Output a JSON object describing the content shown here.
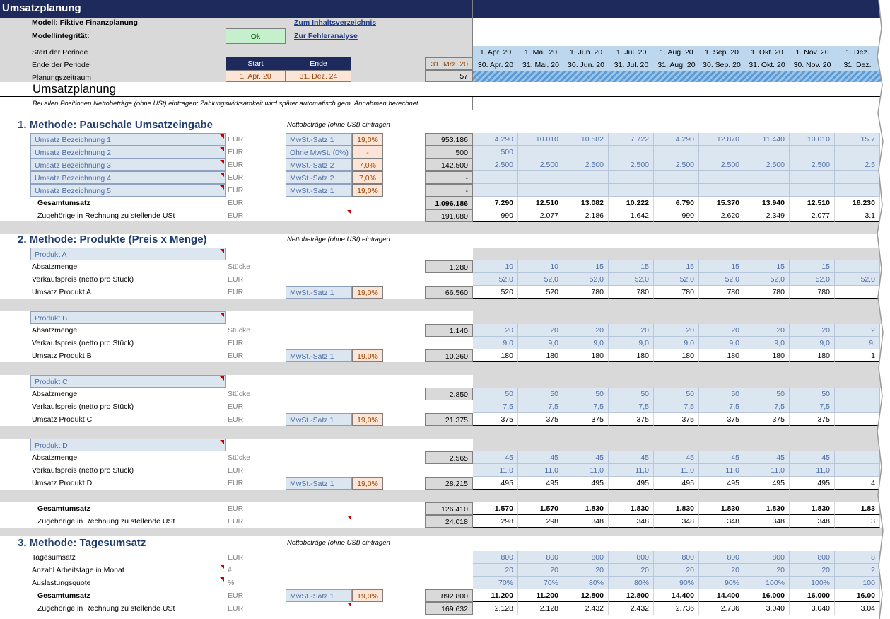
{
  "sheet_title": "Umsatzplanung",
  "header": {
    "model_label": "Modell: Fiktive Finanzplanung",
    "integrity_label": "Modellintegrität:",
    "integrity_status": "Ok",
    "link_toc": "Zum Inhaltsverzeichnis",
    "link_errors": "Zur Fehleranalyse",
    "period_start_label": "Start der Periode",
    "period_end_label": "Ende der Periode",
    "planning_range_label": "Planungszeitraum",
    "start_header": "Start",
    "end_header": "Ende",
    "start_value": "1. Apr. 20",
    "end_value": "31. Dez. 24",
    "prev_date": "31. Mrz. 20",
    "period_count": "57"
  },
  "periods": {
    "starts": [
      "1. Apr. 20",
      "1. Mai. 20",
      "1. Jun. 20",
      "1. Jul. 20",
      "1. Aug. 20",
      "1. Sep. 20",
      "1. Okt. 20",
      "1. Nov. 20",
      "1. Dez."
    ],
    "ends": [
      "30. Apr. 20",
      "31. Mai. 20",
      "30. Jun. 20",
      "31. Jul. 20",
      "31. Aug. 20",
      "30. Sep. 20",
      "31. Okt. 20",
      "30. Nov. 20",
      "31. Dez."
    ]
  },
  "section_title": "Umsatzplanung",
  "note": "Bei allen Positionen Nettobeträge (ohne USt) eintragen; Zahlungswirksamkeit wird später automatisch gem. Annahmen berechnet",
  "m1": {
    "title": "1.  Methode: Pauschale Umsatzeingabe",
    "hint": "Nettobeträge (ohne USt) eintragen",
    "rows": [
      {
        "name": "Umsatz Bezeichnung 1",
        "unit": "EUR",
        "vat": "MwSt.-Satz 1",
        "rate": "19,0%",
        "total": "953.186",
        "vals": [
          "4.290",
          "10.010",
          "10.582",
          "7.722",
          "4.290",
          "12.870",
          "11.440",
          "10.010",
          "15.7"
        ]
      },
      {
        "name": "Umsatz Bezeichnung 2",
        "unit": "EUR",
        "vat": "Ohne MwSt. (0%)",
        "rate": "-",
        "total": "500",
        "vals": [
          "500",
          "",
          "",
          "",
          "",
          "",
          "",
          "",
          ""
        ]
      },
      {
        "name": "Umsatz Bezeichnung 3",
        "unit": "EUR",
        "vat": "MwSt.-Satz 2",
        "rate": "7,0%",
        "total": "142.500",
        "vals": [
          "2.500",
          "2.500",
          "2.500",
          "2.500",
          "2.500",
          "2.500",
          "2.500",
          "2.500",
          "2.5"
        ]
      },
      {
        "name": "Umsatz Bezeichnung 4",
        "unit": "EUR",
        "vat": "MwSt.-Satz 2",
        "rate": "7,0%",
        "total": "-",
        "vals": [
          "",
          "",
          "",
          "",
          "",
          "",
          "",
          "",
          ""
        ]
      },
      {
        "name": "Umsatz Bezeichnung 5",
        "unit": "EUR",
        "vat": "MwSt.-Satz 1",
        "rate": "19,0%",
        "total": "-",
        "vals": [
          "",
          "",
          "",
          "",
          "",
          "",
          "",
          "",
          ""
        ]
      }
    ],
    "sum": {
      "label": "Gesamtumsatz",
      "unit": "EUR",
      "total": "1.096.186",
      "vals": [
        "7.290",
        "12.510",
        "13.082",
        "10.222",
        "6.790",
        "15.370",
        "13.940",
        "12.510",
        "18.230"
      ]
    },
    "vat": {
      "label": "Zugehörige in Rechnung zu stellende USt",
      "unit": "EUR",
      "total": "191.080",
      "vals": [
        "990",
        "2.077",
        "2.186",
        "1.642",
        "990",
        "2.620",
        "2.349",
        "2.077",
        "3.1"
      ]
    }
  },
  "m2": {
    "title": "2.  Methode: Produkte (Preis x Menge)",
    "hint": "Nettobeträge (ohne USt) eintragen",
    "qty_label": "Absatzmenge",
    "qty_unit": "Stücke",
    "price_label": "Verkaufspreis (netto pro Stück)",
    "price_unit": "EUR",
    "products": [
      {
        "name": "Produkt A",
        "rev_label": "Umsatz Produkt A",
        "qty_total": "1.280",
        "rev_total": "66.560",
        "vat": "MwSt.-Satz 1",
        "rate": "19,0%",
        "qty": [
          "10",
          "10",
          "15",
          "15",
          "15",
          "15",
          "15",
          "15",
          ""
        ],
        "price": [
          "52,0",
          "52,0",
          "52,0",
          "52,0",
          "52,0",
          "52,0",
          "52,0",
          "52,0",
          "52,0"
        ],
        "rev": [
          "520",
          "520",
          "780",
          "780",
          "780",
          "780",
          "780",
          "780",
          ""
        ]
      },
      {
        "name": "Produkt B",
        "rev_label": "Umsatz Produkt B",
        "qty_total": "1.140",
        "rev_total": "10.260",
        "vat": "MwSt.-Satz 1",
        "rate": "19,0%",
        "qty": [
          "20",
          "20",
          "20",
          "20",
          "20",
          "20",
          "20",
          "20",
          "2"
        ],
        "price": [
          "9,0",
          "9,0",
          "9,0",
          "9,0",
          "9,0",
          "9,0",
          "9,0",
          "9,0",
          "9,"
        ],
        "rev": [
          "180",
          "180",
          "180",
          "180",
          "180",
          "180",
          "180",
          "180",
          "1"
        ]
      },
      {
        "name": "Produkt C",
        "rev_label": "Umsatz Produkt C",
        "qty_total": "2.850",
        "rev_total": "21.375",
        "vat": "MwSt.-Satz 1",
        "rate": "19,0%",
        "qty": [
          "50",
          "50",
          "50",
          "50",
          "50",
          "50",
          "50",
          "50",
          ""
        ],
        "price": [
          "7,5",
          "7,5",
          "7,5",
          "7,5",
          "7,5",
          "7,5",
          "7,5",
          "7,5",
          ""
        ],
        "rev": [
          "375",
          "375",
          "375",
          "375",
          "375",
          "375",
          "375",
          "375",
          ""
        ]
      },
      {
        "name": "Produkt D",
        "rev_label": "Umsatz Produkt D",
        "qty_total": "2.565",
        "rev_total": "28.215",
        "vat": "MwSt.-Satz 1",
        "rate": "19,0%",
        "qty": [
          "45",
          "45",
          "45",
          "45",
          "45",
          "45",
          "45",
          "45",
          ""
        ],
        "price": [
          "11,0",
          "11,0",
          "11,0",
          "11,0",
          "11,0",
          "11,0",
          "11,0",
          "11,0",
          ""
        ],
        "rev": [
          "495",
          "495",
          "495",
          "495",
          "495",
          "495",
          "495",
          "495",
          "4"
        ]
      }
    ],
    "sum": {
      "label": "Gesamtumsatz",
      "unit": "EUR",
      "total": "126.410",
      "vals": [
        "1.570",
        "1.570",
        "1.830",
        "1.830",
        "1.830",
        "1.830",
        "1.830",
        "1.830",
        "1.83"
      ]
    },
    "vat": {
      "label": "Zugehörige in Rechnung zu stellende USt",
      "unit": "EUR",
      "total": "24.018",
      "vals": [
        "298",
        "298",
        "348",
        "348",
        "348",
        "348",
        "348",
        "348",
        "3"
      ]
    }
  },
  "m3": {
    "title": "3.  Methode: Tagesumsatz",
    "hint": "Nettobeträge (ohne USt) eintragen",
    "rows": [
      {
        "name": "Tagesumsatz",
        "unit": "EUR",
        "vals": [
          "800",
          "800",
          "800",
          "800",
          "800",
          "800",
          "800",
          "800",
          "8"
        ]
      },
      {
        "name": "Anzahl Arbeitstage in Monat",
        "unit": "#",
        "vals": [
          "20",
          "20",
          "20",
          "20",
          "20",
          "20",
          "20",
          "20",
          "2"
        ]
      },
      {
        "name": "Auslastungsquote",
        "unit": "%",
        "vals": [
          "70%",
          "70%",
          "80%",
          "80%",
          "90%",
          "90%",
          "100%",
          "100%",
          "100"
        ]
      }
    ],
    "sum": {
      "label": "Gesamtumsatz",
      "unit": "EUR",
      "vat": "MwSt.-Satz 1",
      "rate": "19,0%",
      "total": "892.800",
      "vals": [
        "11.200",
        "11.200",
        "12.800",
        "12.800",
        "14.400",
        "14.400",
        "16.000",
        "16.000",
        "16.00"
      ]
    },
    "vat": {
      "label": "Zugehörige in Rechnung zu stellende USt",
      "unit": "EUR",
      "total": "169.632",
      "vals": [
        "2.128",
        "2.128",
        "2.432",
        "2.432",
        "2.736",
        "2.736",
        "3.040",
        "3.040",
        "3.04"
      ]
    }
  }
}
